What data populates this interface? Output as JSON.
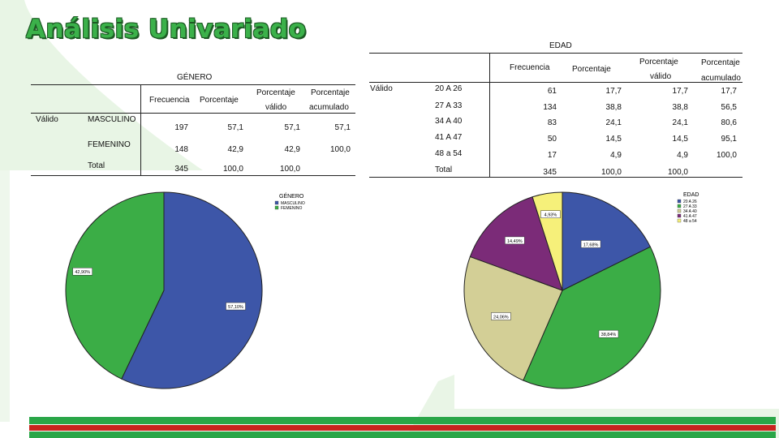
{
  "slide": {
    "title": "Análisis Univariado"
  },
  "genero_table": {
    "caption": "GÉNERO",
    "headers": {
      "frecuencia": "Frecuencia",
      "porcentaje": "Porcentaje",
      "porcentaje_valido_1": "Porcentaje",
      "porcentaje_valido_2": "válido",
      "porcentaje_acumulado_1": "Porcentaje",
      "porcentaje_acumulado_2": "acumulado"
    },
    "group_label": "Válido",
    "rows": [
      {
        "label": "MASCULINO",
        "frecuencia": "197",
        "porcentaje": "57,1",
        "valido": "57,1",
        "acumulado": "57,1"
      },
      {
        "label": "FEMENINO",
        "frecuencia": "148",
        "porcentaje": "42,9",
        "valido": "42,9",
        "acumulado": "100,0"
      },
      {
        "label": "Total",
        "frecuencia": "345",
        "porcentaje": "100,0",
        "valido": "100,0",
        "acumulado": ""
      }
    ]
  },
  "edad_table": {
    "caption": "EDAD",
    "headers": {
      "frecuencia": "Frecuencia",
      "porcentaje": "Porcentaje",
      "porcentaje_valido_1": "Porcentaje",
      "porcentaje_valido_2": "válido",
      "porcentaje_acumulado_1": "Porcentaje",
      "porcentaje_acumulado_2": "acumulado"
    },
    "group_label": "Válido",
    "rows": [
      {
        "label": "20 A 26",
        "frecuencia": "61",
        "porcentaje": "17,7",
        "valido": "17,7",
        "acumulado": "17,7"
      },
      {
        "label": "27 A 33",
        "frecuencia": "134",
        "porcentaje": "38,8",
        "valido": "38,8",
        "acumulado": "56,5"
      },
      {
        "label": "34 A 40",
        "frecuencia": "83",
        "porcentaje": "24,1",
        "valido": "24,1",
        "acumulado": "80,6"
      },
      {
        "label": "41 A 47",
        "frecuencia": "50",
        "porcentaje": "14,5",
        "valido": "14,5",
        "acumulado": "95,1"
      },
      {
        "label": "48 a 54",
        "frecuencia": "17",
        "porcentaje": "4,9",
        "valido": "4,9",
        "acumulado": "100,0"
      },
      {
        "label": "Total",
        "frecuencia": "345",
        "porcentaje": "100,0",
        "valido": "100,0",
        "acumulado": ""
      }
    ]
  },
  "chart_data": [
    {
      "type": "pie",
      "legend_title": "GÉNERO",
      "legend_position": "top-right",
      "categories": [
        "MASCULINO",
        "FEMENINO"
      ],
      "values": [
        57.1,
        42.9
      ],
      "labels": [
        "57,10%",
        "42,90%"
      ],
      "colors": [
        "#3d56a8",
        "#3bad46"
      ]
    },
    {
      "type": "pie",
      "legend_title": "EDAD",
      "legend_position": "top-right",
      "categories": [
        "20 A 26",
        "27 A 33",
        "34 A 40",
        "41 A 47",
        "48 a 54"
      ],
      "values": [
        17.68,
        38.84,
        24.06,
        14.49,
        4.93
      ],
      "labels": [
        "17,68%",
        "38,84%",
        "24,06%",
        "14,49%",
        "4,93%"
      ],
      "colors": [
        "#3d56a8",
        "#3bad46",
        "#d3cf96",
        "#7b2b78",
        "#f6f07a"
      ]
    }
  ],
  "colors": {
    "title_green": "#3bb14a",
    "bar_green": "#2aa648",
    "bar_red": "#c8231e",
    "bg_green": "#e6f4e3"
  }
}
